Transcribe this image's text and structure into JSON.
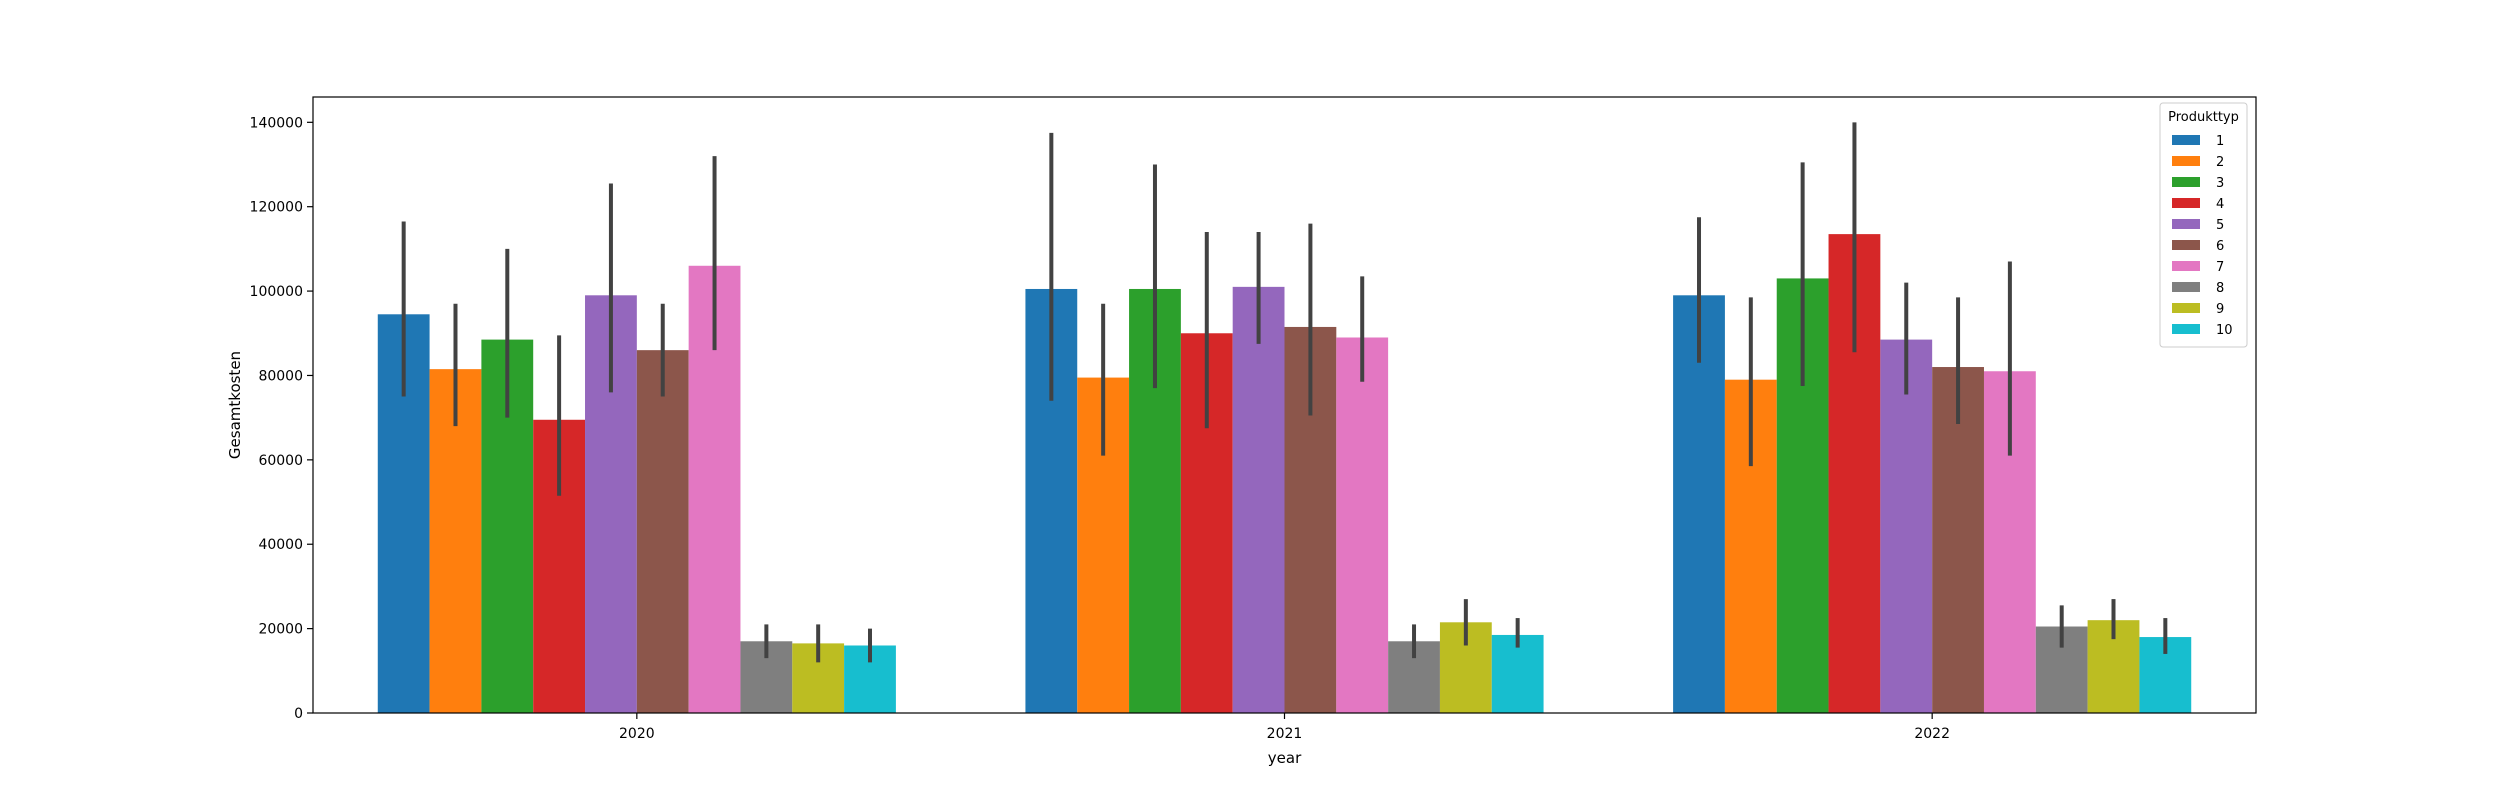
{
  "chart_data": {
    "type": "bar",
    "categories": [
      "2020",
      "2021",
      "2022"
    ],
    "xlabel": "year",
    "ylabel": "Gesamtkosten",
    "ylim": [
      0,
      146000
    ],
    "yticks": [
      0,
      20000,
      40000,
      60000,
      80000,
      100000,
      120000,
      140000
    ],
    "grid": false,
    "legend": {
      "title": "Produkttyp",
      "placement": "top-right"
    },
    "series": [
      {
        "name": "1",
        "color": "#1f77b4",
        "values": [
          94500,
          100500,
          99000
        ],
        "error_low": [
          75000,
          74000,
          83000
        ],
        "error_high": [
          116500,
          137500,
          117500
        ]
      },
      {
        "name": "2",
        "color": "#ff7f0e",
        "values": [
          81500,
          79500,
          79000
        ],
        "error_low": [
          68000,
          61000,
          58500
        ],
        "error_high": [
          97000,
          97000,
          98500
        ]
      },
      {
        "name": "3",
        "color": "#2ca02c",
        "values": [
          88500,
          100500,
          103000
        ],
        "error_low": [
          70000,
          77000,
          77500
        ],
        "error_high": [
          110000,
          130000,
          130500
        ]
      },
      {
        "name": "4",
        "color": "#d62728",
        "values": [
          69500,
          90000,
          113500
        ],
        "error_low": [
          51500,
          67500,
          85500
        ],
        "error_high": [
          89500,
          114000,
          140000
        ]
      },
      {
        "name": "5",
        "color": "#9467bd",
        "values": [
          99000,
          101000,
          88500
        ],
        "error_low": [
          76000,
          87500,
          75500
        ],
        "error_high": [
          125500,
          114000,
          102000
        ]
      },
      {
        "name": "6",
        "color": "#8c564b",
        "values": [
          86000,
          91500,
          82000
        ],
        "error_low": [
          75000,
          70500,
          68500
        ],
        "error_high": [
          97000,
          116000,
          98500
        ]
      },
      {
        "name": "7",
        "color": "#e377c2",
        "values": [
          106000,
          89000,
          81000
        ],
        "error_low": [
          86000,
          78500,
          61000
        ],
        "error_high": [
          132000,
          103500,
          107000
        ]
      },
      {
        "name": "8",
        "color": "#7f7f7f",
        "values": [
          17000,
          17000,
          20500
        ],
        "error_low": [
          13000,
          13000,
          15500
        ],
        "error_high": [
          21000,
          21000,
          25500
        ]
      },
      {
        "name": "9",
        "color": "#bcbd22",
        "values": [
          16500,
          21500,
          22000
        ],
        "error_low": [
          12000,
          16000,
          17500
        ],
        "error_high": [
          21000,
          27000,
          27000
        ]
      },
      {
        "name": "10",
        "color": "#17becf",
        "values": [
          16000,
          18500,
          18000
        ],
        "error_low": [
          12000,
          15500,
          14000
        ],
        "error_high": [
          20000,
          22500,
          22500
        ]
      }
    ]
  }
}
